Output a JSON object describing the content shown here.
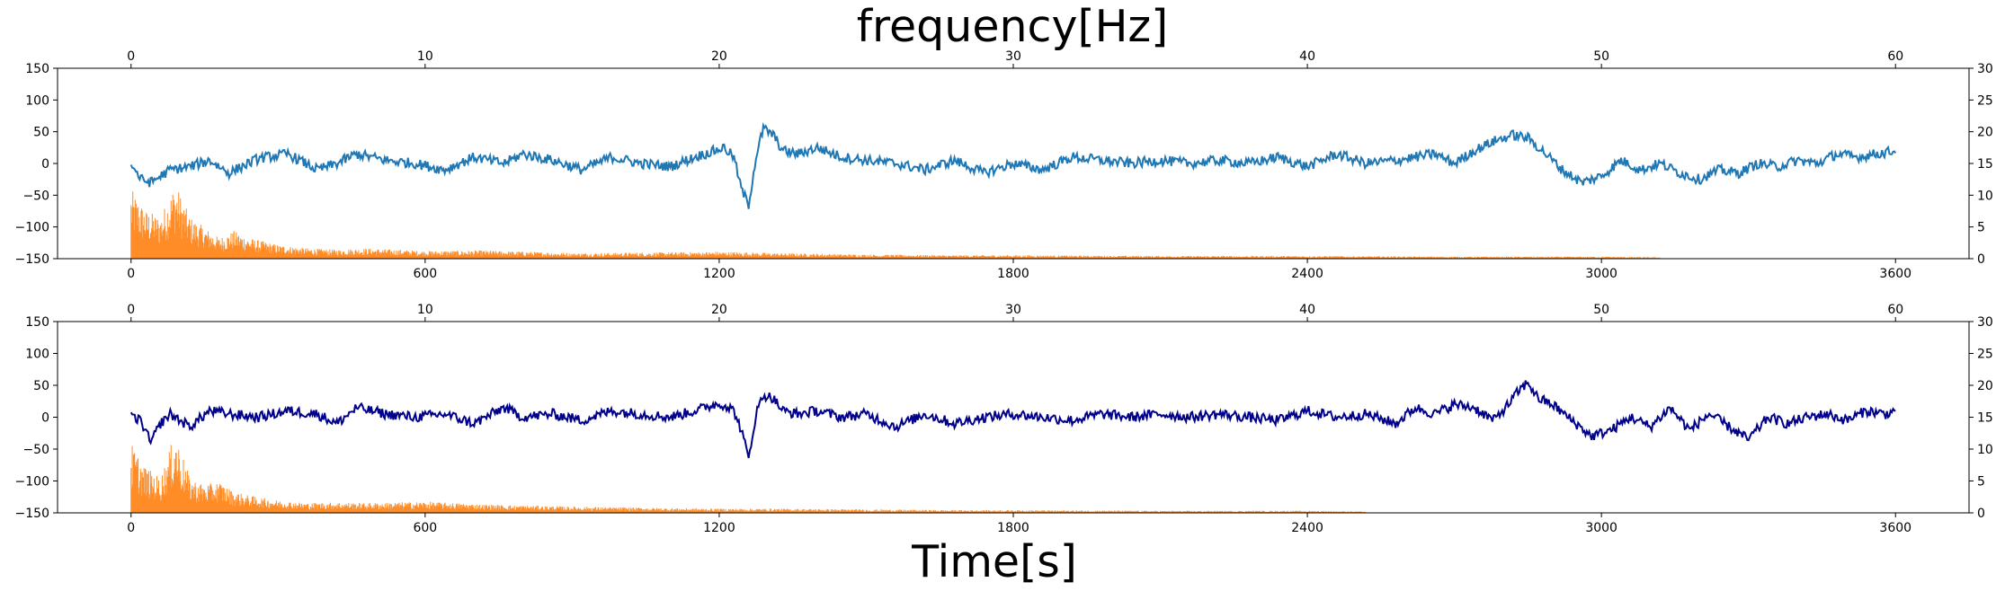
{
  "chart_data": {
    "title": "frequency[Hz]",
    "xlabel": "Time[s]",
    "colors": {
      "top_signal": "#1f77b4",
      "bottom_signal": "#00008b",
      "spectrum": "#ff7f0e"
    },
    "panels": [
      {
        "type": "line",
        "panel": "top",
        "bottom_axis": {
          "range": [
            -150,
            3750
          ],
          "ticks": [
            0,
            600,
            1200,
            1800,
            2400,
            3000,
            3600
          ]
        },
        "top_axis": {
          "range": [
            -2.5,
            62.5
          ],
          "ticks": [
            0,
            10,
            20,
            30,
            40,
            50,
            60
          ]
        },
        "left_axis": {
          "range": [
            -150,
            150
          ],
          "ticks": [
            -150,
            -100,
            -50,
            0,
            50,
            100,
            150
          ]
        },
        "right_axis": {
          "range": [
            0,
            30
          ],
          "ticks": [
            0,
            5,
            10,
            15,
            20,
            25,
            30
          ]
        },
        "signal": {
          "x": [
            0,
            20,
            40,
            80,
            120,
            160,
            200,
            260,
            320,
            380,
            420,
            460,
            520,
            580,
            640,
            700,
            760,
            800,
            860,
            920,
            980,
            1040,
            1100,
            1150,
            1190,
            1210,
            1230,
            1245,
            1260,
            1275,
            1290,
            1310,
            1330,
            1360,
            1400,
            1450,
            1500,
            1560,
            1620,
            1680,
            1740,
            1800,
            1860,
            1920,
            1980,
            2040,
            2100,
            2160,
            2220,
            2280,
            2340,
            2400,
            2460,
            2520,
            2580,
            2620,
            2660,
            2700,
            2740,
            2780,
            2820,
            2850,
            2880,
            2920,
            2960,
            3000,
            3040,
            3080,
            3120,
            3160,
            3200,
            3240,
            3280,
            3320,
            3360,
            3400,
            3440,
            3480,
            3520,
            3560,
            3600
          ],
          "y": [
            0,
            -25,
            -30,
            -10,
            -5,
            5,
            -15,
            8,
            15,
            -10,
            0,
            15,
            5,
            0,
            -10,
            10,
            0,
            15,
            5,
            -10,
            10,
            0,
            -5,
            10,
            20,
            25,
            10,
            -40,
            -65,
            10,
            55,
            45,
            20,
            15,
            25,
            10,
            5,
            0,
            -10,
            5,
            -15,
            0,
            -10,
            10,
            5,
            0,
            5,
            0,
            5,
            0,
            10,
            -5,
            15,
            0,
            5,
            10,
            15,
            0,
            20,
            35,
            45,
            40,
            20,
            -10,
            -30,
            -20,
            5,
            -10,
            0,
            -15,
            -25,
            -10,
            -15,
            0,
            -5,
            5,
            0,
            15,
            10,
            15,
            20
          ]
        },
        "spectrum": {
          "freq": [
            0,
            0.5,
            1,
            1.5,
            2,
            2.5,
            3,
            3.5,
            4,
            5,
            6,
            7,
            8,
            10,
            12,
            15,
            18,
            20,
            22,
            25,
            28,
            30,
            35,
            40,
            45,
            50,
            52
          ],
          "amp": [
            10,
            7,
            6,
            11,
            6,
            4.5,
            3,
            4,
            3,
            2,
            1.5,
            1.3,
            1.5,
            1.1,
            1.2,
            0.8,
            0.9,
            1,
            0.8,
            0.6,
            0.5,
            0.5,
            0.4,
            0.4,
            0.3,
            0.3,
            0.2
          ]
        }
      },
      {
        "type": "line",
        "panel": "bottom",
        "bottom_axis": {
          "range": [
            -150,
            3750
          ],
          "ticks": [
            0,
            600,
            1200,
            1800,
            2400,
            3000,
            3600
          ]
        },
        "top_axis": {
          "range": [
            -2.5,
            62.5
          ],
          "ticks": [
            0,
            10,
            20,
            30,
            40,
            50,
            60
          ]
        },
        "left_axis": {
          "range": [
            -150,
            150
          ],
          "ticks": [
            -150,
            -100,
            -50,
            0,
            50,
            100,
            150
          ]
        },
        "right_axis": {
          "range": [
            0,
            30
          ],
          "ticks": [
            0,
            5,
            10,
            15,
            20,
            25,
            30
          ]
        },
        "signal": {
          "x": [
            0,
            20,
            40,
            60,
            80,
            120,
            160,
            200,
            260,
            320,
            380,
            420,
            460,
            520,
            580,
            640,
            700,
            760,
            800,
            860,
            920,
            980,
            1040,
            1100,
            1150,
            1190,
            1210,
            1230,
            1245,
            1260,
            1275,
            1290,
            1310,
            1330,
            1360,
            1400,
            1450,
            1500,
            1560,
            1620,
            1680,
            1740,
            1800,
            1860,
            1920,
            1980,
            2040,
            2100,
            2160,
            2220,
            2280,
            2340,
            2400,
            2460,
            2520,
            2580,
            2620,
            2660,
            2700,
            2740,
            2780,
            2810,
            2830,
            2850,
            2870,
            2900,
            2940,
            2980,
            3020,
            3060,
            3100,
            3140,
            3180,
            3220,
            3260,
            3300,
            3340,
            3380,
            3420,
            3460,
            3500,
            3540,
            3580,
            3600
          ],
          "y": [
            0,
            -5,
            -40,
            -10,
            5,
            -15,
            10,
            5,
            0,
            10,
            5,
            -10,
            15,
            5,
            0,
            5,
            -10,
            15,
            0,
            5,
            -5,
            10,
            5,
            0,
            10,
            20,
            20,
            10,
            -20,
            -65,
            5,
            35,
            30,
            10,
            5,
            10,
            0,
            5,
            -15,
            5,
            -10,
            0,
            5,
            0,
            -5,
            5,
            0,
            5,
            0,
            5,
            0,
            -5,
            10,
            0,
            5,
            -10,
            15,
            5,
            20,
            15,
            -5,
            20,
            40,
            55,
            30,
            20,
            -5,
            -30,
            -20,
            0,
            -15,
            15,
            -20,
            5,
            -15,
            -35,
            0,
            -10,
            0,
            5,
            -5,
            10,
            5,
            10
          ]
        },
        "spectrum": {
          "freq": [
            0,
            0.5,
            1,
            1.5,
            2,
            2.5,
            3,
            3.5,
            4,
            5,
            6,
            7,
            8,
            10,
            12,
            13,
            15,
            18,
            20,
            22,
            25,
            28,
            30,
            35,
            40,
            42
          ],
          "amp": [
            10,
            6.5,
            5,
            11.5,
            5,
            4,
            4.5,
            3,
            2.5,
            1.8,
            1.4,
            1.5,
            1.4,
            1.6,
            1.2,
            1.1,
            0.9,
            0.7,
            0.6,
            0.6,
            0.5,
            0.4,
            0.4,
            0.3,
            0.3,
            0.2
          ]
        }
      }
    ]
  }
}
